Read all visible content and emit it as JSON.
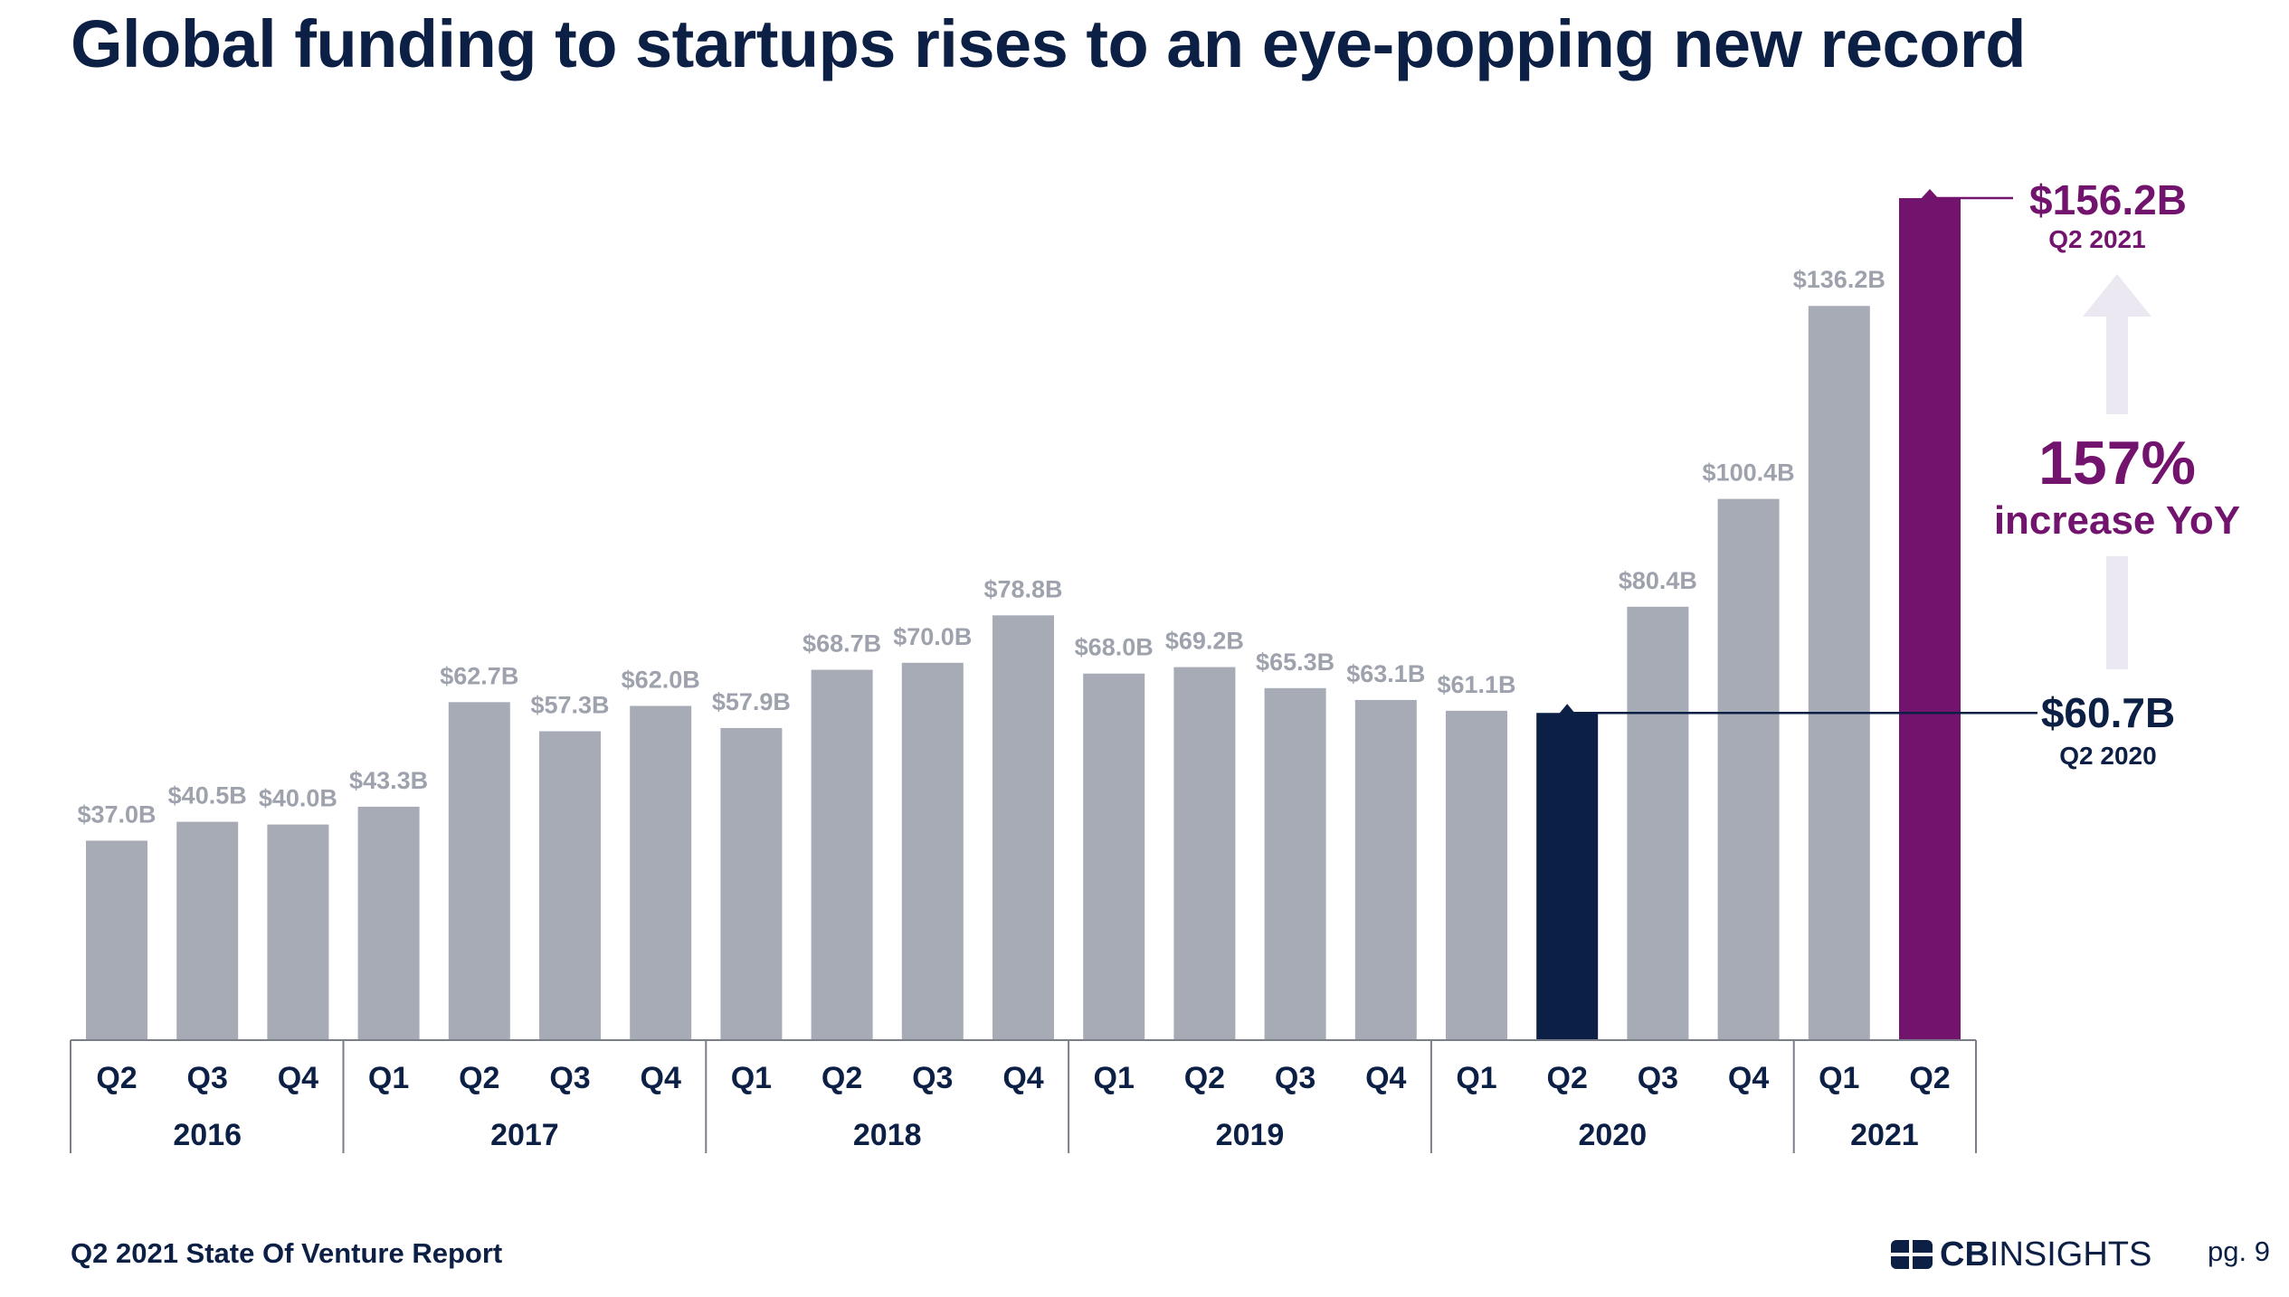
{
  "title": "Global funding to startups rises to an eye-popping new record",
  "chart_data": {
    "type": "bar",
    "categories": [
      "Q2",
      "Q3",
      "Q4",
      "Q1",
      "Q2",
      "Q3",
      "Q4",
      "Q1",
      "Q2",
      "Q3",
      "Q4",
      "Q1",
      "Q2",
      "Q3",
      "Q4",
      "Q1",
      "Q2",
      "Q3",
      "Q4",
      "Q1",
      "Q2"
    ],
    "years": [
      {
        "label": "2016",
        "quarters": 3
      },
      {
        "label": "2017",
        "quarters": 4
      },
      {
        "label": "2018",
        "quarters": 4
      },
      {
        "label": "2019",
        "quarters": 4
      },
      {
        "label": "2020",
        "quarters": 4
      },
      {
        "label": "2021",
        "quarters": 2
      }
    ],
    "values": [
      37.0,
      40.5,
      40.0,
      43.3,
      62.7,
      57.3,
      62.0,
      57.9,
      68.7,
      70.0,
      78.8,
      68.0,
      69.2,
      65.3,
      63.1,
      61.1,
      60.7,
      80.4,
      100.4,
      136.2,
      156.2
    ],
    "data_labels": [
      "$37.0B",
      "$40.5B",
      "$40.0B",
      "$43.3B",
      "$62.7B",
      "$57.3B",
      "$62.0B",
      "$57.9B",
      "$68.7B",
      "$70.0B",
      "$78.8B",
      "$68.0B",
      "$69.2B",
      "$65.3B",
      "$63.1B",
      "$61.1B",
      "",
      "$80.4B",
      "$100.4B",
      "$136.2B",
      ""
    ],
    "highlights": [
      {
        "index": 16,
        "color": "#0c1f45",
        "value_label": "$60.7B",
        "period_label": "Q2 2020"
      },
      {
        "index": 20,
        "color": "#72136d",
        "value_label": "$156.2B",
        "period_label": "Q2 2021"
      }
    ],
    "annotation": {
      "big": "157%",
      "small": "increase YoY"
    },
    "colors": {
      "bar": "#a7abb6",
      "label": "#9ea2ad",
      "axis_text": "#0c1f45",
      "arrow": "#ece8f2",
      "accent": "#72136d"
    },
    "ylim": [
      0,
      160
    ],
    "xlabel": "",
    "ylabel": "",
    "grid": false
  },
  "footer": {
    "report": "Q2 2021 State Of Venture Report",
    "logo_bold": "CB",
    "logo_light": "INSIGHTS",
    "page": "pg. 9"
  }
}
